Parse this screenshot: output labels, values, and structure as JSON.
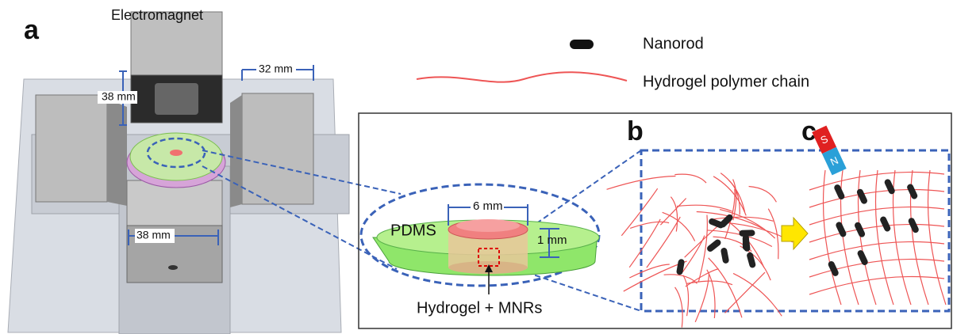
{
  "panels": {
    "a": "a",
    "b": "b",
    "c": "c"
  },
  "left": {
    "electromagnet": "Electromagnet",
    "dim_side": "38 mm",
    "dim_top": "32 mm",
    "dim_bottom": "38 mm"
  },
  "legend": {
    "nanorod": "Nanorod",
    "chain": "Hydrogel polymer chain"
  },
  "inset": {
    "width": "6 mm",
    "height": "1 mm",
    "pdms": "PDMS",
    "sample": "Hydrogel + MNRs"
  },
  "magnet": {
    "south": "S",
    "north": "N"
  }
}
